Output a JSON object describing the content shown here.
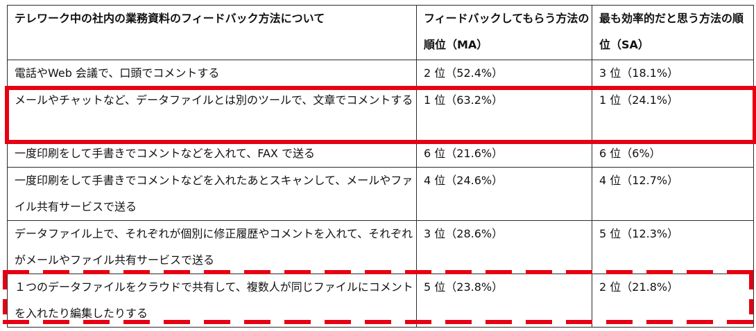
{
  "table": {
    "headers": [
      "テレワーク中の社内の業務資料のフィードバック方法について",
      "フィードバックしてもらう方法の順位（MA）",
      "最も効率的だと思う方法の順位（SA）"
    ],
    "rows": [
      {
        "method": "電話やWeb 会議で、口頭でコメントする",
        "ma_rank": "2 位（52.4%）",
        "sa_rank": "3 位（18.1%）"
      },
      {
        "method": "メールやチャットなど、データファイルとは別のツールで、文章でコメントする",
        "ma_rank": "1 位（63.2%）",
        "sa_rank": "1 位（24.1%）"
      },
      {
        "method": "一度印刷をして手書きでコメントなどを入れて、FAX で送る",
        "ma_rank": "6 位（21.6%）",
        "sa_rank": "6 位（6%）"
      },
      {
        "method": "一度印刷をして手書きでコメントなどを入れたあとスキャンして、メールやファイル共有サービスで送る",
        "ma_rank": "4 位（24.6%）",
        "sa_rank": "4 位（12.7%）"
      },
      {
        "method": "データファイル上で、それぞれが個別に修正履歴やコメントを入れて、それぞれがメールやファイル共有サービスで送る",
        "ma_rank": "3 位（28.6%）",
        "sa_rank": "5 位（12.3%）"
      },
      {
        "method": "１つのデータファイルをクラウドで共有して、複数人が同じファイルにコメントを入れたり編集したりする",
        "ma_rank": "5 位（23.8%）",
        "sa_rank": "2 位（21.8%）"
      }
    ]
  },
  "colors": {
    "highlight": "#e60012",
    "border": "#2a2a2a"
  }
}
